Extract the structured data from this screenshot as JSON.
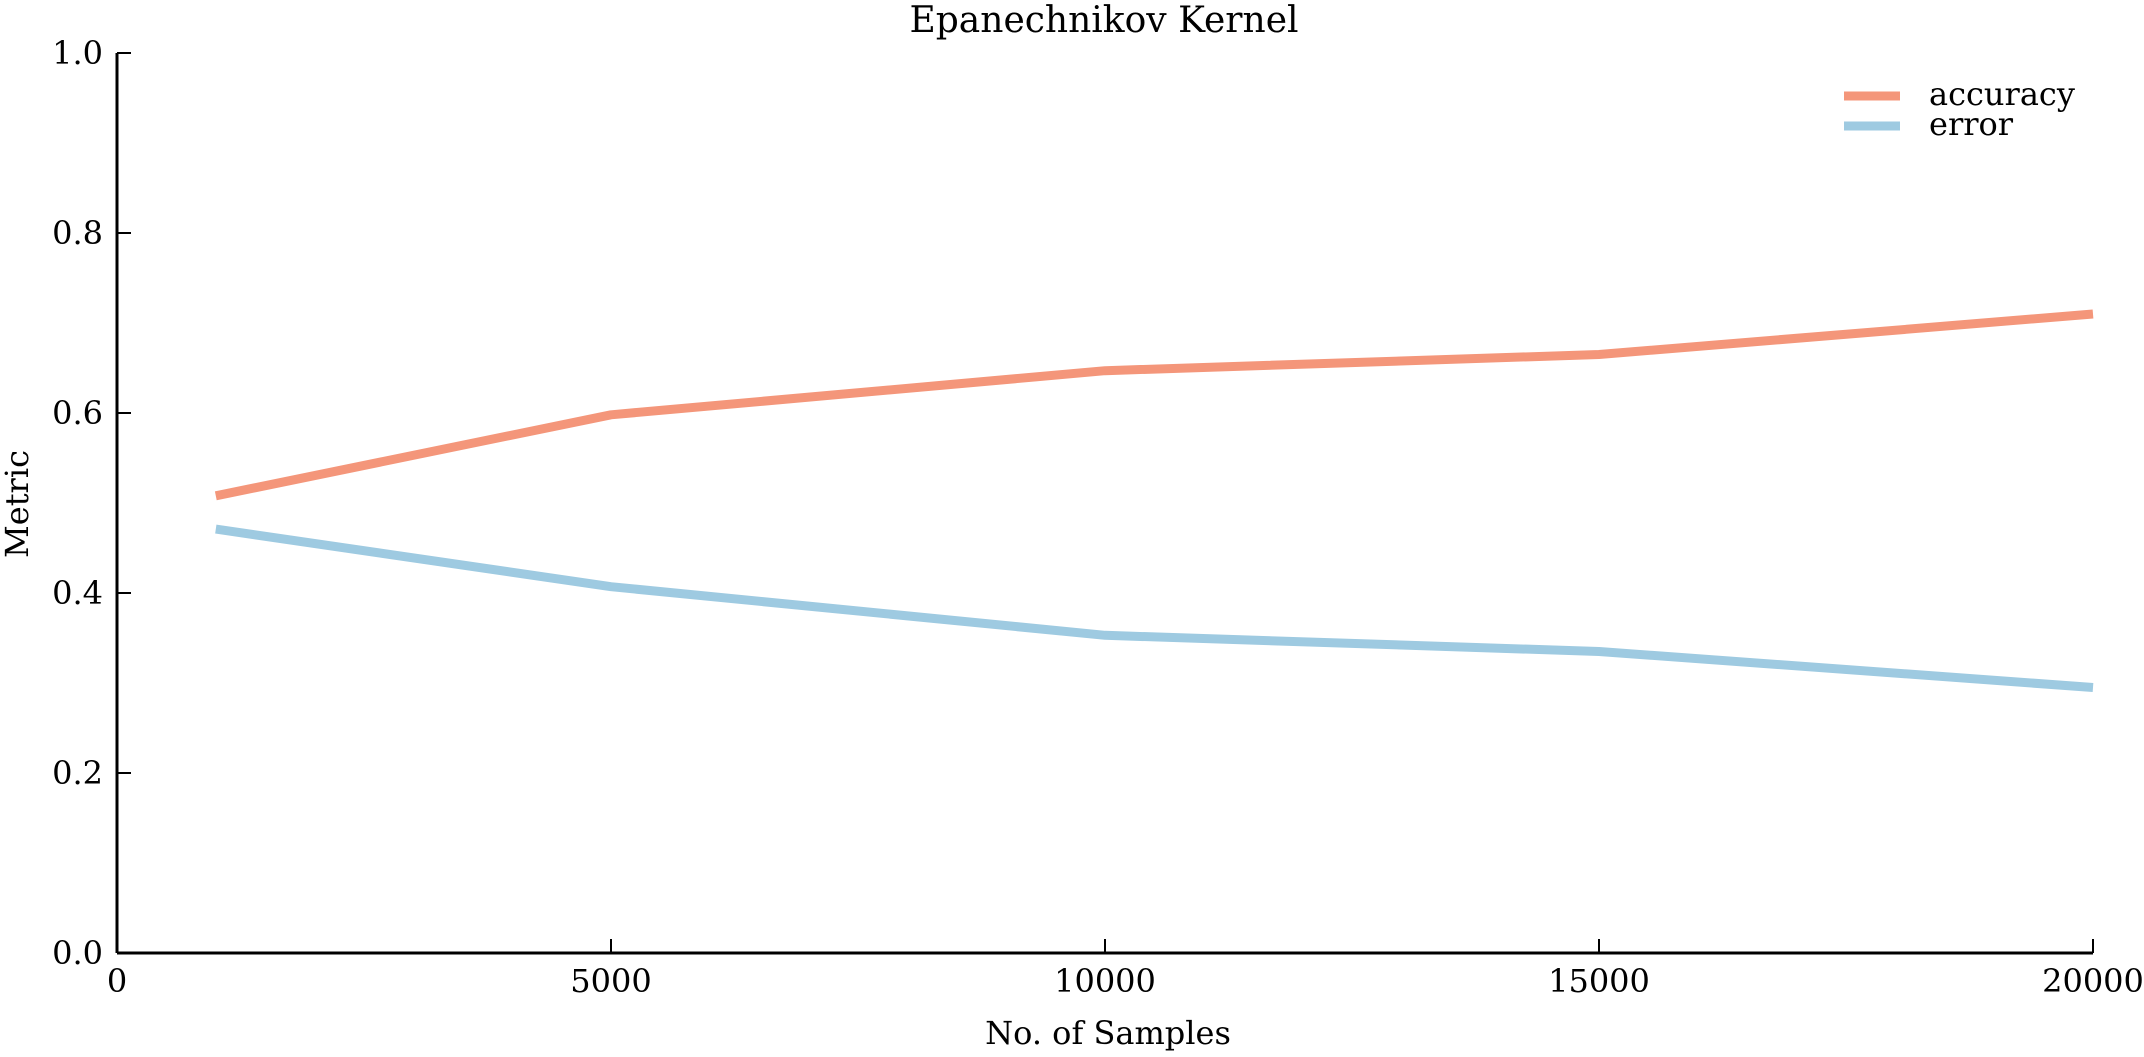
{
  "chart_data": {
    "type": "line",
    "title": "Epanechnikov Kernel",
    "xlabel": "No. of Samples",
    "ylabel": "Metric",
    "xlim": [
      0,
      20000
    ],
    "ylim": [
      0.0,
      1.0
    ],
    "x_ticks": [
      "0",
      "5000",
      "10000",
      "15000",
      "20000"
    ],
    "y_ticks": [
      "0.0",
      "0.2",
      "0.4",
      "0.6",
      "0.8",
      "1.0"
    ],
    "x_tick_values": [
      0,
      5000,
      10000,
      15000,
      20000
    ],
    "y_tick_values": [
      0.0,
      0.2,
      0.4,
      0.6,
      0.8,
      1.0
    ],
    "x": [
      1000,
      5000,
      10000,
      15000,
      20000
    ],
    "series": [
      {
        "name": "accuracy",
        "color": "#f4967a",
        "values": [
          0.508,
          0.598,
          0.647,
          0.665,
          0.71
        ]
      },
      {
        "name": "error",
        "color": "#9ecae1",
        "values": [
          0.471,
          0.407,
          0.353,
          0.335,
          0.295
        ]
      }
    ],
    "legend_position": "top-right",
    "grid": false
  }
}
